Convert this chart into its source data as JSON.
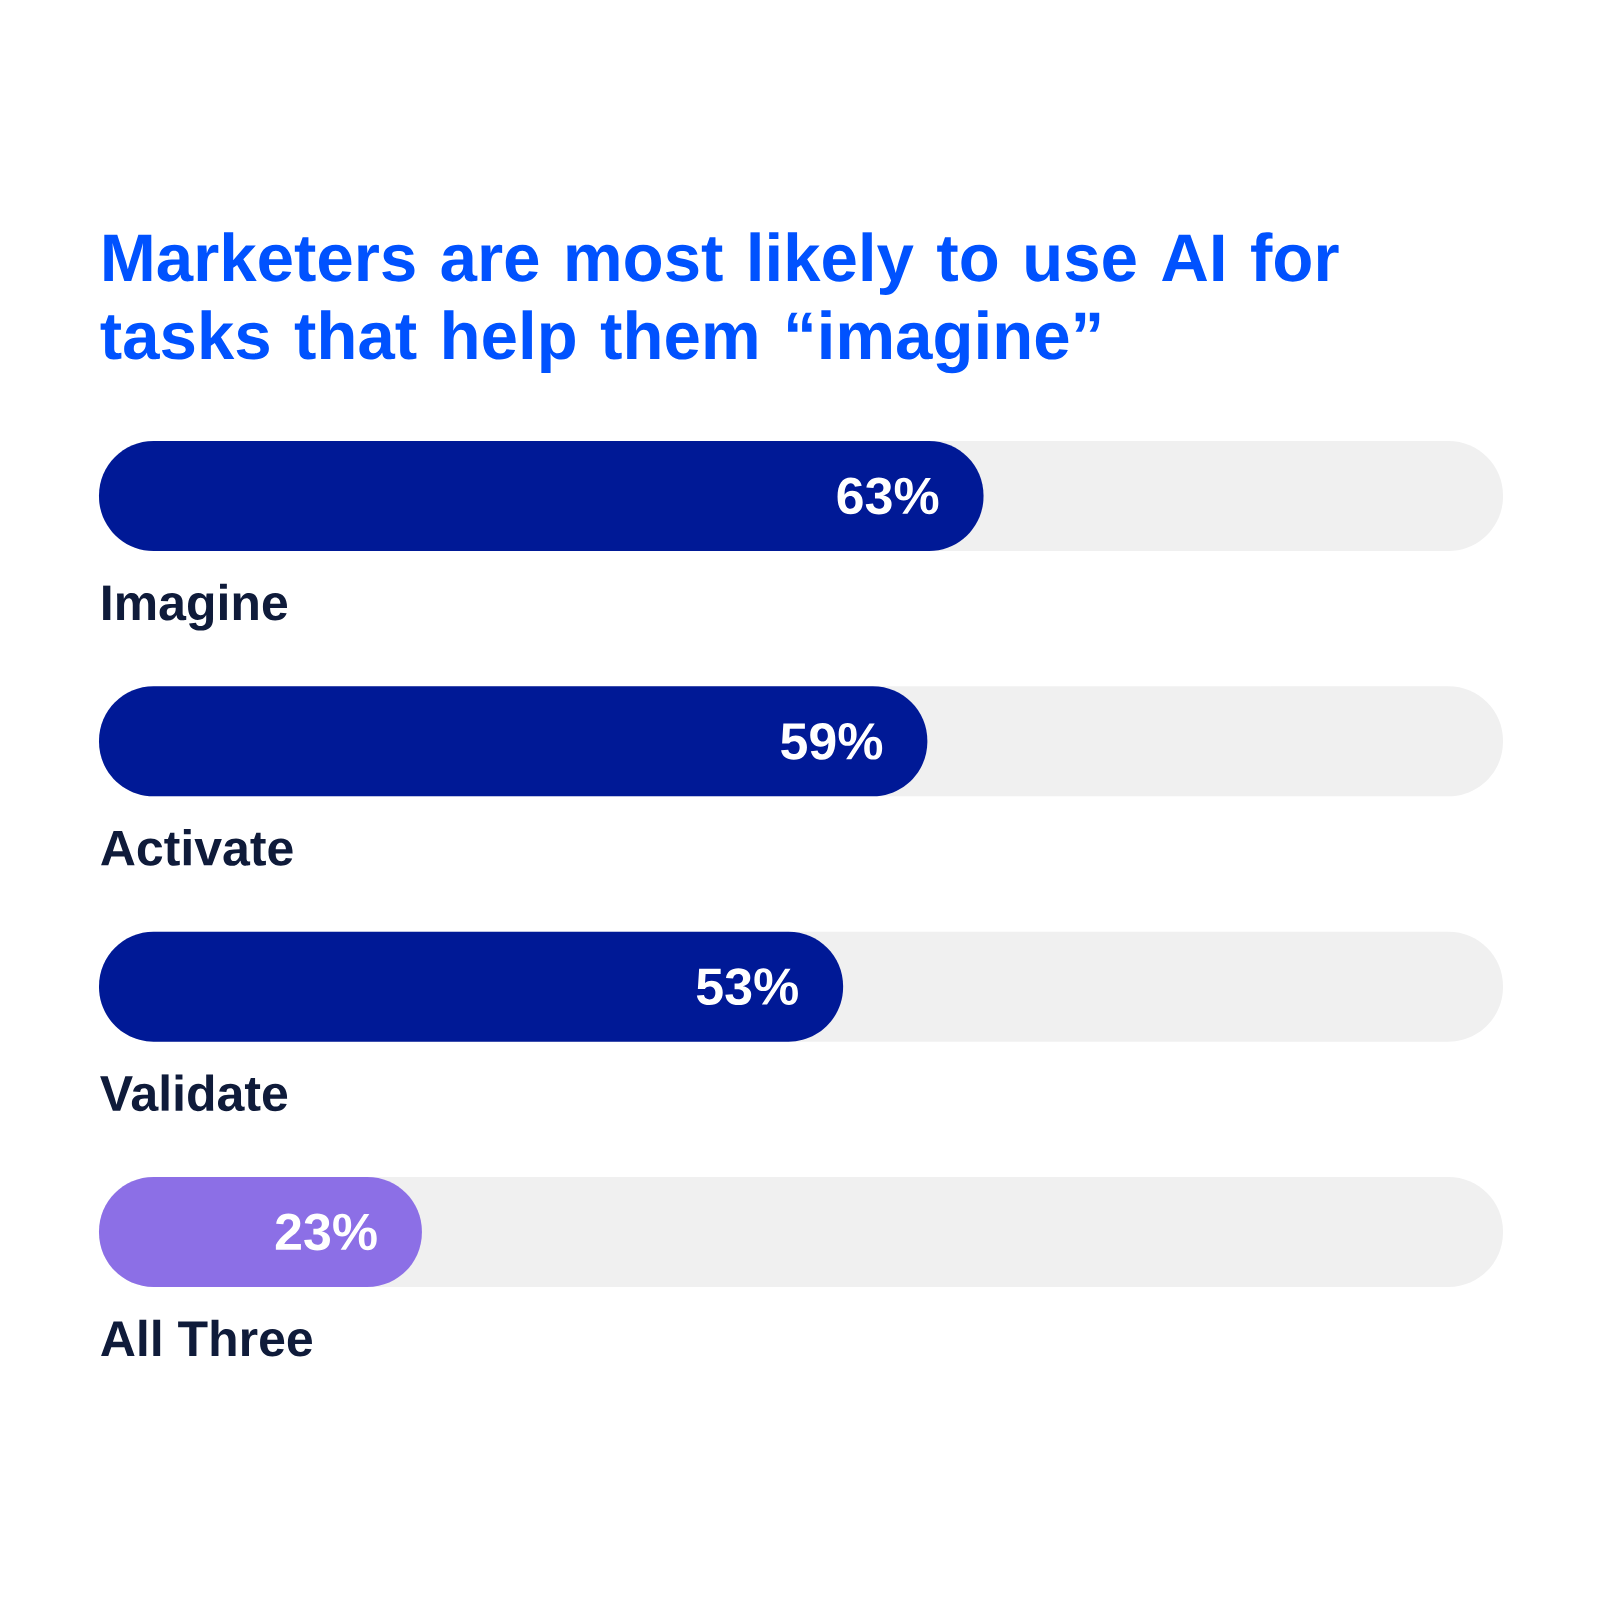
{
  "chart_data": {
    "type": "bar",
    "orientation": "horizontal",
    "title": "Marketers are most likely to use AI for tasks that help them “imagine”",
    "categories": [
      "Imagine",
      "Activate",
      "Validate",
      "All Three"
    ],
    "values": [
      63,
      59,
      53,
      23
    ],
    "colors": [
      "#001996",
      "#001996",
      "#001996",
      "#8c6fe6"
    ],
    "value_labels": [
      "63%",
      "59%",
      "53%",
      "23%"
    ],
    "xlim": [
      0,
      100
    ],
    "tick_labels": "y"
  }
}
